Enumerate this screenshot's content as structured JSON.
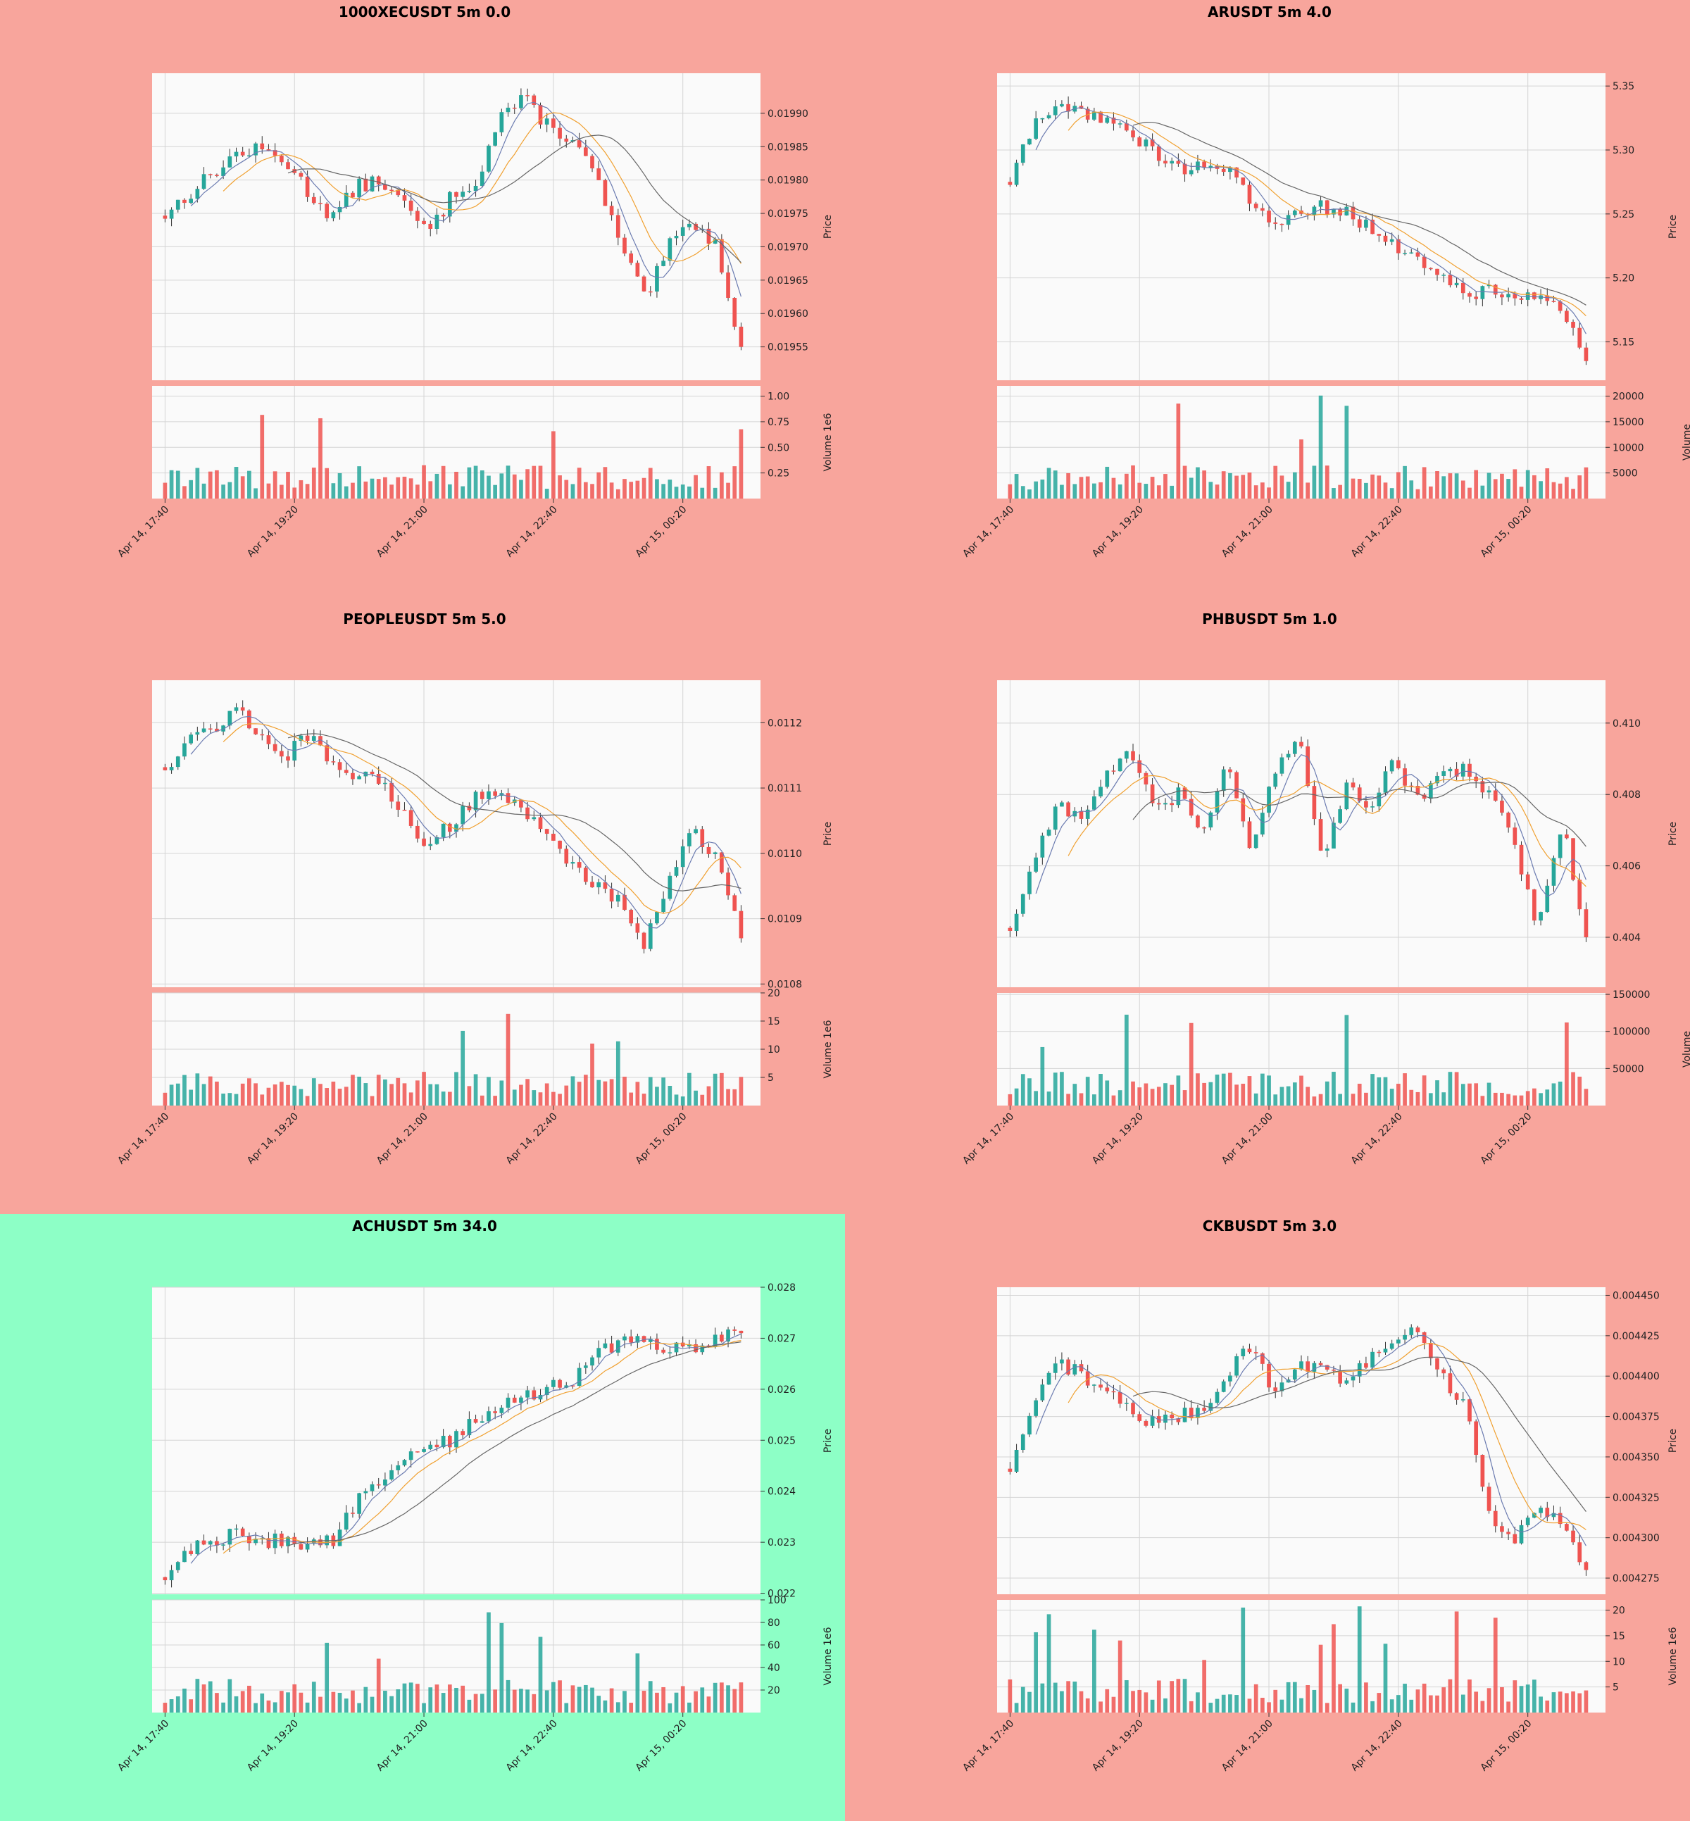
{
  "colors": {
    "panel_bg_default": "#f8a59c",
    "panel_bg_highlight": "#8dffc6",
    "plot_bg": "#fafafa",
    "up": "#26a69a",
    "down": "#ef5350",
    "ma_fast": "#6b7bb0",
    "ma_mid": "#f0a030",
    "ma_slow": "#666666"
  },
  "x_tick_labels": [
    "Apr 14, 17:40",
    "Apr 14, 19:20",
    "Apr 14, 21:00",
    "Apr 14, 22:40",
    "Apr 15, 00:20"
  ],
  "charts": [
    {
      "title": "1000XECUSDT 5m 0.0",
      "highlight": false
    },
    {
      "title": "ARUSDT 5m 4.0",
      "highlight": false
    },
    {
      "title": "PEOPLEUSDT 5m 5.0",
      "highlight": false
    },
    {
      "title": "PHBUSDT 5m 1.0",
      "highlight": false
    },
    {
      "title": "ACHUSDT 5m 34.0",
      "highlight": true
    },
    {
      "title": "CKBUSDT 5m 3.0",
      "highlight": false
    }
  ],
  "chart_data": [
    {
      "type": "candlestick",
      "title": "1000XECUSDT 5m 0.0",
      "x_ticks": [
        "Apr 14, 17:40",
        "Apr 14, 19:20",
        "Apr 14, 21:00",
        "Apr 14, 22:40",
        "Apr 15, 00:20"
      ],
      "price": {
        "ylabel": "Price",
        "ylim": [
          0.0195,
          0.01996
        ],
        "ticks": [
          "0.01955",
          "0.01960",
          "0.01965",
          "0.01970",
          "0.01975",
          "0.01980",
          "0.01985",
          "0.01990"
        ],
        "close_trend": [
          0.019748,
          0.01978,
          0.01981,
          0.01984,
          0.019845,
          0.01983,
          0.01978,
          0.019745,
          0.01979,
          0.0198,
          0.01976,
          0.01972,
          0.01978,
          0.0198,
          0.0199,
          0.01992,
          0.01988,
          0.01986,
          0.0198,
          0.0197,
          0.01962,
          0.0197,
          0.01974,
          0.0197,
          0.01955
        ]
      },
      "volume": {
        "ylabel": "Volume",
        "scale": "1e6",
        "ticks": [
          "0.25",
          "0.50",
          "0.75",
          "1.00"
        ],
        "vmax": 1.1
      }
    },
    {
      "type": "candlestick",
      "title": "ARUSDT 5m 4.0",
      "x_ticks": [
        "Apr 14, 17:40",
        "Apr 14, 19:20",
        "Apr 14, 21:00",
        "Apr 14, 22:40",
        "Apr 15, 00:20"
      ],
      "price": {
        "ylabel": "Price",
        "ylim": [
          5.12,
          5.36
        ],
        "ticks": [
          "5.15",
          "5.20",
          "5.25",
          "5.30",
          "5.35"
        ],
        "close_trend": [
          5.275,
          5.32,
          5.335,
          5.33,
          5.325,
          5.31,
          5.3,
          5.285,
          5.29,
          5.285,
          5.26,
          5.24,
          5.255,
          5.255,
          5.25,
          5.24,
          5.225,
          5.215,
          5.2,
          5.185,
          5.195,
          5.18,
          5.19,
          5.175,
          5.135
        ]
      },
      "volume": {
        "ylabel": "Volume",
        "scale": "",
        "ticks": [
          "5000",
          "10000",
          "15000",
          "20000"
        ],
        "vmax": 22000
      }
    },
    {
      "type": "candlestick",
      "title": "PEOPLEUSDT 5m 5.0",
      "x_ticks": [
        "Apr 14, 17:40",
        "Apr 14, 19:20",
        "Apr 14, 21:00",
        "Apr 14, 22:40",
        "Apr 15, 00:20"
      ],
      "price": {
        "ylabel": "Price",
        "ylim": [
          0.010795,
          0.011265
        ],
        "ticks": [
          "0.0108",
          "0.0109",
          "0.0110",
          "0.0111",
          "0.0112"
        ],
        "close_trend": [
          0.01113,
          0.01118,
          0.01119,
          0.01122,
          0.01118,
          0.01115,
          0.01118,
          0.01113,
          0.01112,
          0.01111,
          0.01106,
          0.01101,
          0.01105,
          0.01109,
          0.011095,
          0.01106,
          0.01102,
          0.01098,
          0.01095,
          0.01093,
          0.01086,
          0.01096,
          0.01104,
          0.01099,
          0.01087
        ]
      },
      "volume": {
        "ylabel": "Volume",
        "scale": "1e6",
        "ticks": [
          "5",
          "10",
          "15",
          "20"
        ],
        "vmax": 20
      }
    },
    {
      "type": "candlestick",
      "title": "PHBUSDT 5m 1.0",
      "x_ticks": [
        "Apr 14, 17:40",
        "Apr 14, 19:20",
        "Apr 14, 21:00",
        "Apr 14, 22:40",
        "Apr 15, 00:20"
      ],
      "price": {
        "ylabel": "Price",
        "ylim": [
          0.4026,
          0.4112
        ],
        "ticks": [
          "0.404",
          "0.406",
          "0.408",
          "0.410"
        ],
        "close_trend": [
          0.4042,
          0.4062,
          0.4078,
          0.4072,
          0.4086,
          0.4092,
          0.4075,
          0.408,
          0.4068,
          0.409,
          0.4066,
          0.4085,
          0.4096,
          0.4062,
          0.4082,
          0.4075,
          0.409,
          0.4078,
          0.4085,
          0.4088,
          0.408,
          0.4067,
          0.4042,
          0.4072,
          0.404
        ]
      },
      "volume": {
        "ylabel": "Volume",
        "scale": "",
        "ticks": [
          "50000",
          "100000",
          "150000"
        ],
        "vmax": 152000
      }
    },
    {
      "type": "candlestick",
      "title": "ACHUSDT 5m 34.0",
      "x_ticks": [
        "Apr 14, 17:40",
        "Apr 14, 19:20",
        "Apr 14, 21:00",
        "Apr 14, 22:40",
        "Apr 15, 00:20"
      ],
      "price": {
        "ylabel": "Price",
        "ylim": [
          0.02198,
          0.028
        ],
        "ticks": [
          "0.022",
          "0.023",
          "0.024",
          "0.025",
          "0.026",
          "0.027",
          "0.028"
        ],
        "close_trend": [
          0.02225,
          0.0229,
          0.023,
          0.0232,
          0.02305,
          0.023,
          0.023,
          0.02305,
          0.0238,
          0.0242,
          0.0246,
          0.0249,
          0.025,
          0.0254,
          0.0257,
          0.0259,
          0.026,
          0.0262,
          0.0267,
          0.0269,
          0.027,
          0.0268,
          0.0268,
          0.027,
          0.0271
        ]
      },
      "volume": {
        "ylabel": "Volume",
        "scale": "1e6",
        "ticks": [
          "20",
          "40",
          "60",
          "80",
          "100"
        ],
        "vmax": 100
      }
    },
    {
      "type": "candlestick",
      "title": "CKBUSDT 5m 3.0",
      "x_ticks": [
        "Apr 14, 17:40",
        "Apr 14, 19:20",
        "Apr 14, 21:00",
        "Apr 14, 22:40",
        "Apr 15, 00:20"
      ],
      "price": {
        "ylabel": "Price",
        "ylim": [
          0.004265,
          0.004455
        ],
        "ticks": [
          "0.004275",
          "0.004300",
          "0.004325",
          "0.004350",
          "0.004375",
          "0.004400",
          "0.004425",
          "0.004450"
        ],
        "close_trend": [
          0.00434,
          0.00438,
          0.00441,
          0.0044,
          0.00439,
          0.00438,
          0.00437,
          0.004375,
          0.00438,
          0.0044,
          0.00442,
          0.00439,
          0.004405,
          0.00441,
          0.004395,
          0.00441,
          0.00442,
          0.00443,
          0.0044,
          0.00438,
          0.00431,
          0.0043,
          0.00432,
          0.00431,
          0.00428
        ]
      },
      "volume": {
        "ylabel": "Volume",
        "scale": "1e6",
        "ticks": [
          "5",
          "10",
          "15",
          "20"
        ],
        "vmax": 22
      }
    }
  ]
}
